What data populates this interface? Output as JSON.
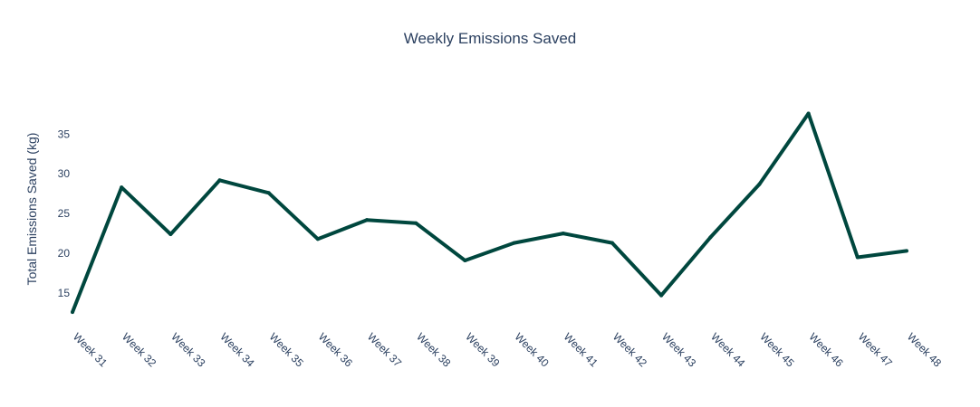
{
  "chart_data": {
    "type": "line",
    "title": "Weekly Emissions Saved",
    "xlabel": "",
    "ylabel": "Total Emissions Saved (kg)",
    "categories": [
      "Week 31",
      "Week 32",
      "Week 33",
      "Week 34",
      "Week 35",
      "Week 36",
      "Week 37",
      "Week 38",
      "Week 39",
      "Week 40",
      "Week 41",
      "Week 42",
      "Week 43",
      "Week 44",
      "Week 45",
      "Week 46",
      "Week 47",
      "Week 48"
    ],
    "series": [
      {
        "values": [
          12.6,
          28.3,
          22.4,
          29.2,
          27.6,
          21.8,
          24.2,
          23.8,
          19.1,
          21.3,
          22.5,
          21.3,
          14.7,
          22.0,
          28.7,
          37.6,
          19.5,
          20.3
        ]
      }
    ],
    "ylim": [
      10.9,
      40.5
    ],
    "yticks": [
      15,
      20,
      25,
      30,
      35
    ],
    "grid": false,
    "legend": "none",
    "line_color": "#00473e"
  }
}
